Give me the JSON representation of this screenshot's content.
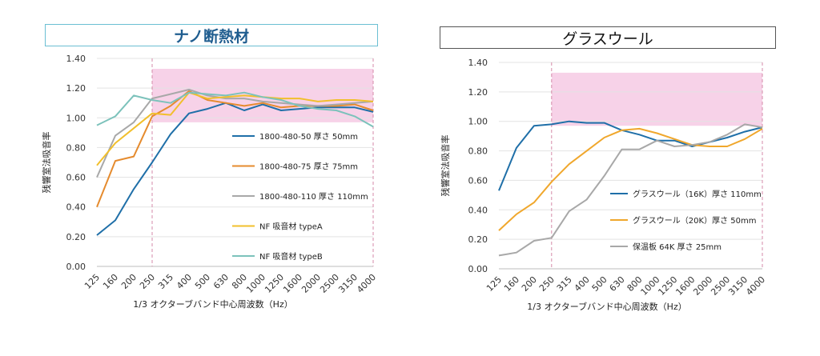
{
  "charts": [
    {
      "title": "ナノ断熱材",
      "chart_data": {
        "type": "line",
        "title": "ナノ断熱材",
        "xlabel": "1/3 オクターブバンド中心周波数（Hz）",
        "ylabel": "残響室法吸音率",
        "ylim": [
          0,
          1.4
        ],
        "yticks": [
          "0.00",
          "0.20",
          "0.40",
          "0.60",
          "0.80",
          "1.00",
          "1.20",
          "1.40"
        ],
        "categories": [
          "125",
          "160",
          "200",
          "250",
          "315",
          "400",
          "500",
          "630",
          "800",
          "1000",
          "1250",
          "1600",
          "2000",
          "2500",
          "3150",
          "4000"
        ],
        "highlight": {
          "x_from": "250",
          "x_to": "4000",
          "y_from": 0.97,
          "y_to": 1.33,
          "color": "#f7d2e8"
        },
        "grid": true,
        "legend_position": "inside-right",
        "series": [
          {
            "name": "1800-480-50 厚さ 50mm",
            "color": "#1f6fa8",
            "values": [
              0.21,
              0.31,
              0.52,
              0.7,
              0.89,
              1.03,
              1.06,
              1.1,
              1.05,
              1.09,
              1.05,
              1.06,
              1.07,
              1.07,
              1.07,
              1.04
            ]
          },
          {
            "name": "1800-480-75 厚さ 75mm",
            "color": "#e58b2e",
            "values": [
              0.4,
              0.71,
              0.74,
              1.01,
              1.08,
              1.18,
              1.12,
              1.1,
              1.08,
              1.1,
              1.07,
              1.08,
              1.08,
              1.08,
              1.09,
              1.05
            ]
          },
          {
            "name": "1800-480-110 厚さ 110mm",
            "color": "#a8a8a8",
            "values": [
              0.6,
              0.88,
              0.97,
              1.13,
              1.16,
              1.19,
              1.15,
              1.13,
              1.13,
              1.11,
              1.1,
              1.09,
              1.08,
              1.09,
              1.1,
              1.11
            ]
          },
          {
            "name": "NF 吸音材 typeA",
            "color": "#f1bf2c",
            "values": [
              0.68,
              0.83,
              0.93,
              1.03,
              1.02,
              1.17,
              1.13,
              1.14,
              1.15,
              1.14,
              1.13,
              1.13,
              1.11,
              1.12,
              1.12,
              1.11
            ]
          },
          {
            "name": "NF 吸音材 typeB",
            "color": "#7cc2bb",
            "values": [
              0.95,
              1.01,
              1.15,
              1.12,
              1.1,
              1.17,
              1.16,
              1.15,
              1.17,
              1.14,
              1.12,
              1.08,
              1.06,
              1.05,
              1.01,
              0.94
            ]
          }
        ]
      }
    },
    {
      "title": "グラスウール",
      "chart_data": {
        "type": "line",
        "title": "グラスウール",
        "xlabel": "1/3 オクターブバンド中心周波数（Hz）",
        "ylabel": "残響室法吸音率",
        "ylim": [
          0,
          1.4
        ],
        "yticks": [
          "0.00",
          "0.20",
          "0.40",
          "0.60",
          "0.80",
          "1.00",
          "1.20",
          "1.40"
        ],
        "categories": [
          "125",
          "160",
          "200",
          "250",
          "315",
          "400",
          "500",
          "630",
          "800",
          "1000",
          "1250",
          "1600",
          "2000",
          "2500",
          "3150",
          "4000"
        ],
        "highlight": {
          "x_from": "250",
          "x_to": "4000",
          "y_from": 0.97,
          "y_to": 1.33,
          "color": "#f7d2e8"
        },
        "grid": true,
        "legend_position": "inside-right",
        "series": [
          {
            "name": "グラスウール（16K）厚さ 110mm",
            "color": "#1f6fa8",
            "values": [
              0.53,
              0.82,
              0.97,
              0.98,
              1.0,
              0.99,
              0.99,
              0.94,
              0.91,
              0.87,
              0.87,
              0.83,
              0.86,
              0.89,
              0.93,
              0.96
            ]
          },
          {
            "name": "グラスウール（20K）厚さ 50mm",
            "color": "#f0a72c",
            "values": [
              0.26,
              0.37,
              0.45,
              0.59,
              0.71,
              0.8,
              0.89,
              0.94,
              0.95,
              0.92,
              0.88,
              0.84,
              0.83,
              0.83,
              0.88,
              0.95
            ]
          },
          {
            "name": "保温板 64K 厚さ 25mm",
            "color": "#a8a8a8",
            "values": [
              0.09,
              0.11,
              0.19,
              0.21,
              0.39,
              0.47,
              0.63,
              0.81,
              0.81,
              0.87,
              0.83,
              0.84,
              0.86,
              0.91,
              0.98,
              0.96
            ]
          }
        ]
      }
    }
  ]
}
